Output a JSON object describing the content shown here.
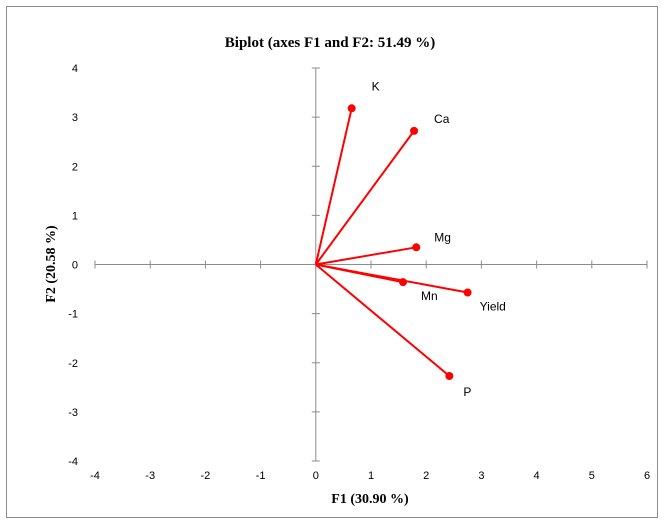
{
  "chart_data": {
    "type": "biplot",
    "title": "Biplot (axes F1 and F2: 51.49 %)",
    "xlabel": "F1 (30.90 %)",
    "ylabel": "F2 (20.58 %)",
    "xlim": [
      -4,
      6
    ],
    "ylim": [
      -4,
      4
    ],
    "xticks": [
      "-4",
      "-3",
      "-2",
      "-1",
      "0",
      "1",
      "2",
      "3",
      "4",
      "5",
      "6"
    ],
    "yticks": [
      "-4",
      "-3",
      "-2",
      "-1",
      "0",
      "1",
      "2",
      "3",
      "4"
    ],
    "grid": false,
    "color": "#ff0000",
    "points": [
      {
        "label": "K",
        "x": 0.65,
        "y": 3.18
      },
      {
        "label": "Ca",
        "x": 1.78,
        "y": 2.72
      },
      {
        "label": "Mg",
        "x": 1.82,
        "y": 0.35
      },
      {
        "label": "Mn",
        "x": 1.58,
        "y": -0.36
      },
      {
        "label": "Yield",
        "x": 2.75,
        "y": -0.57
      },
      {
        "label": "P",
        "x": 2.42,
        "y": -2.27
      }
    ]
  }
}
